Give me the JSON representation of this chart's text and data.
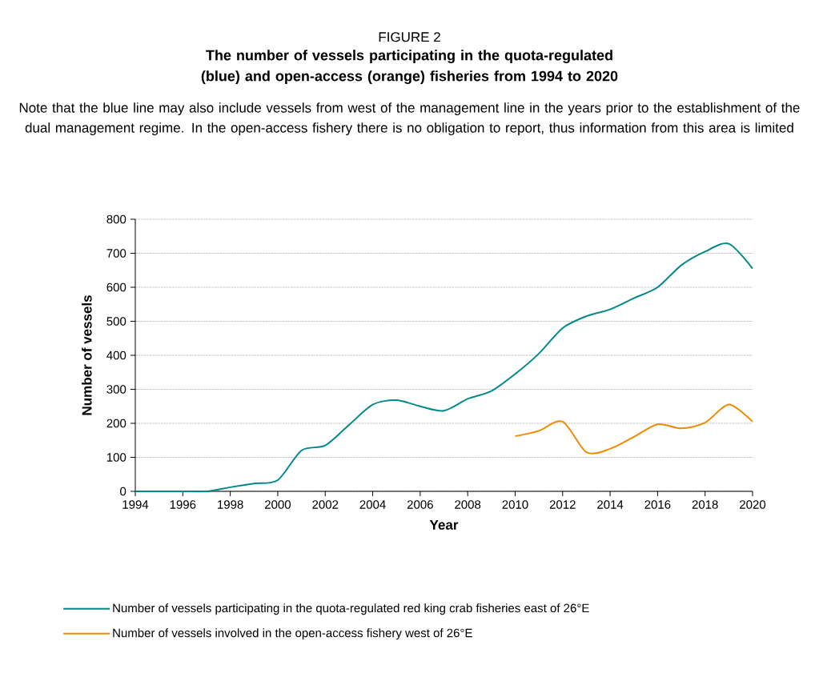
{
  "chart_data": {
    "type": "line",
    "title": "FIGURE 2",
    "subtitle": "The number of vessels participating in the quota-regulated (blue) and open-access (orange) fisheries from 1994 to 2020",
    "annotations": [
      "Note that the blue line may also include vessels from west of the management line in the years prior to the establishment of the dual management regime. In the open-access fishery there is no obligation to report, thus information from this area is limited"
    ],
    "xlabel": "Year",
    "ylabel": "Number of vessels",
    "xlim": [
      1994,
      2020
    ],
    "xticks": [
      1994,
      1996,
      1998,
      2000,
      2002,
      2004,
      2006,
      2008,
      2010,
      2012,
      2014,
      2016,
      2018,
      2020
    ],
    "ylim": [
      0,
      800
    ],
    "yticks": [
      0,
      100,
      200,
      300,
      400,
      500,
      600,
      700,
      800
    ],
    "grid": "y",
    "legend": "bottom",
    "line_style": "solid",
    "series": [
      {
        "name": "Number of vessels participating in the quota-regulated red king crab fisheries east of 26°E",
        "color": "#00898a",
        "x": [
          1994,
          1995,
          1996,
          1997,
          1998,
          1999,
          2000,
          2001,
          2002,
          2003,
          2004,
          2005,
          2006,
          2007,
          2008,
          2009,
          2010,
          2011,
          2012,
          2013,
          2014,
          2015,
          2016,
          2017,
          2018,
          2019,
          2020
        ],
        "values": [
          0,
          0,
          0,
          0,
          12,
          23,
          33,
          120,
          135,
          195,
          255,
          268,
          250,
          237,
          272,
          295,
          345,
          405,
          480,
          515,
          535,
          568,
          600,
          665,
          705,
          728,
          655
        ]
      },
      {
        "name": "Number of vessels involved in the open-access fishery west of 26°E",
        "color": "#f08a00",
        "x": [
          2010,
          2011,
          2012,
          2013,
          2014,
          2015,
          2016,
          2017,
          2018,
          2019,
          2020
        ],
        "values": [
          162,
          178,
          205,
          115,
          125,
          160,
          197,
          185,
          202,
          255,
          205
        ]
      }
    ]
  }
}
